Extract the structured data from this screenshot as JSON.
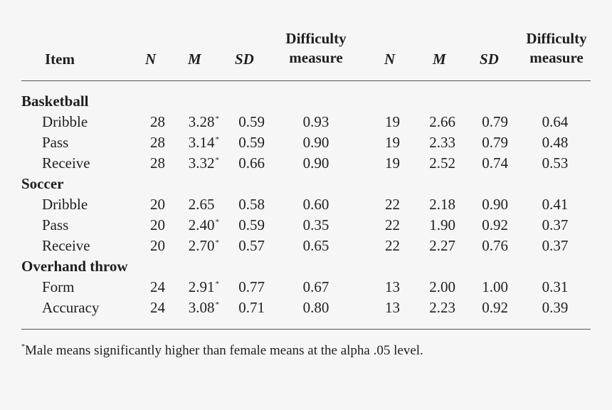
{
  "headers": {
    "item": "Item",
    "n": "N",
    "m": "M",
    "sd": "SD",
    "difficulty_line1": "Difficulty",
    "difficulty_line2": "measure"
  },
  "groups": [
    {
      "name": "Basketball",
      "rows": [
        {
          "label": "Dribble",
          "left": {
            "n": "28",
            "m": "3.28",
            "sig": true,
            "sd": "0.59",
            "diff": "0.93"
          },
          "right": {
            "n": "19",
            "m": "2.66",
            "sd": "0.79",
            "diff": "0.64"
          }
        },
        {
          "label": "Pass",
          "left": {
            "n": "28",
            "m": "3.14",
            "sig": true,
            "sd": "0.59",
            "diff": "0.90"
          },
          "right": {
            "n": "19",
            "m": "2.33",
            "sd": "0.79",
            "diff": "0.48"
          }
        },
        {
          "label": "Receive",
          "left": {
            "n": "28",
            "m": "3.32",
            "sig": true,
            "sd": "0.66",
            "diff": "0.90"
          },
          "right": {
            "n": "19",
            "m": "2.52",
            "sd": "0.74",
            "diff": "0.53"
          }
        }
      ]
    },
    {
      "name": "Soccer",
      "rows": [
        {
          "label": "Dribble",
          "left": {
            "n": "20",
            "m": "2.65",
            "sig": false,
            "sd": "0.58",
            "diff": "0.60"
          },
          "right": {
            "n": "22",
            "m": "2.18",
            "sd": "0.90",
            "diff": "0.41"
          }
        },
        {
          "label": "Pass",
          "left": {
            "n": "20",
            "m": "2.40",
            "sig": true,
            "sd": "0.59",
            "diff": "0.35"
          },
          "right": {
            "n": "22",
            "m": "1.90",
            "sd": "0.92",
            "diff": "0.37"
          }
        },
        {
          "label": "Receive",
          "left": {
            "n": "20",
            "m": "2.70",
            "sig": true,
            "sd": "0.57",
            "diff": "0.65"
          },
          "right": {
            "n": "22",
            "m": "2.27",
            "sd": "0.76",
            "diff": "0.37"
          }
        }
      ]
    },
    {
      "name": "Overhand throw",
      "rows": [
        {
          "label": "Form",
          "left": {
            "n": "24",
            "m": "2.91",
            "sig": true,
            "sd": "0.77",
            "diff": "0.67"
          },
          "right": {
            "n": "13",
            "m": "2.00",
            "sd": "1.00",
            "diff": "0.31"
          }
        },
        {
          "label": "Accuracy",
          "left": {
            "n": "24",
            "m": "3.08",
            "sig": true,
            "sd": "0.71",
            "diff": "0.80"
          },
          "right": {
            "n": "13",
            "m": "2.23",
            "sd": "0.92",
            "diff": "0.39"
          }
        }
      ]
    }
  ],
  "asterisk": "*",
  "footnote": {
    "marker": "*",
    "text": "Male means significantly higher than female means at the alpha .05 level."
  }
}
